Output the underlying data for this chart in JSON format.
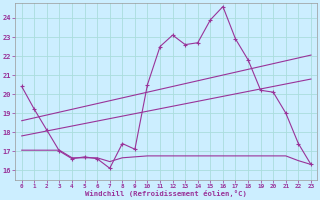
{
  "xlabel": "Windchill (Refroidissement éolien,°C)",
  "bg_color": "#cceeff",
  "grid_color": "#aadddd",
  "line_color": "#993399",
  "xlim": [
    -0.5,
    23.5
  ],
  "ylim": [
    15.5,
    24.8
  ],
  "yticks": [
    16,
    17,
    18,
    19,
    20,
    21,
    22,
    23,
    24
  ],
  "xticks": [
    0,
    1,
    2,
    3,
    4,
    5,
    6,
    7,
    8,
    9,
    10,
    11,
    12,
    13,
    14,
    15,
    16,
    17,
    18,
    19,
    20,
    21,
    22,
    23
  ],
  "hours": [
    0,
    1,
    2,
    3,
    4,
    5,
    6,
    7,
    8,
    9,
    10,
    11,
    12,
    13,
    14,
    15,
    16,
    17,
    18,
    19,
    20,
    21,
    22,
    23
  ],
  "curve1": [
    20.4,
    19.2,
    18.1,
    17.0,
    16.6,
    16.7,
    16.6,
    16.1,
    17.4,
    17.1,
    20.5,
    22.5,
    23.1,
    22.6,
    22.7,
    23.9,
    24.6,
    22.9,
    21.8,
    20.2,
    20.1,
    19.0,
    17.4,
    16.3
  ],
  "linear_high": [
    18.6,
    18.75,
    18.9,
    19.05,
    19.2,
    19.35,
    19.5,
    19.65,
    19.8,
    19.95,
    20.1,
    20.25,
    20.4,
    20.55,
    20.7,
    20.85,
    21.0,
    21.15,
    21.3,
    21.45,
    21.6,
    21.75,
    21.9,
    22.05
  ],
  "linear_low": [
    17.8,
    17.93,
    18.06,
    18.19,
    18.32,
    18.45,
    18.58,
    18.71,
    18.84,
    18.97,
    19.1,
    19.23,
    19.36,
    19.49,
    19.62,
    19.75,
    19.88,
    20.01,
    20.14,
    20.27,
    20.4,
    20.53,
    20.66,
    20.79
  ],
  "flat_line": [
    17.05,
    17.05,
    17.05,
    17.05,
    16.65,
    16.65,
    16.65,
    16.45,
    16.65,
    16.7,
    16.75,
    16.75,
    16.75,
    16.75,
    16.75,
    16.75,
    16.75,
    16.75,
    16.75,
    16.75,
    16.75,
    16.75,
    16.5,
    16.3
  ]
}
